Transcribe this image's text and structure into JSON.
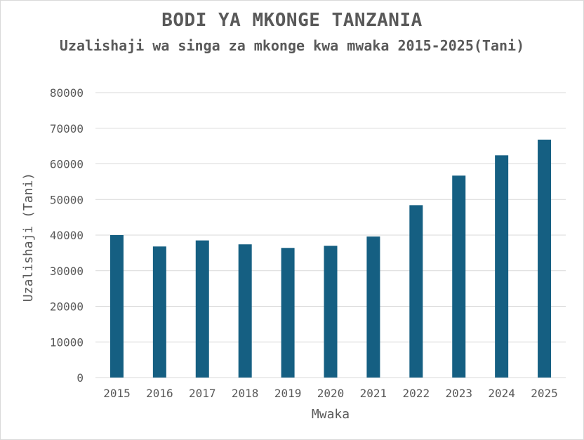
{
  "chart_data": {
    "type": "bar",
    "title": "BODI YA MKONGE TANZANIA",
    "subtitle": "Uzalishaji wa singa za mkonge kwa mwaka 2015-2025(Tani)",
    "xlabel": "Mwaka",
    "ylabel": "Uzalishaji (Tani)",
    "ylim": [
      0,
      80000
    ],
    "yticks": [
      0,
      10000,
      20000,
      30000,
      40000,
      50000,
      60000,
      70000,
      80000
    ],
    "grid": true,
    "legend": "none",
    "bar_color": "#155f82",
    "categories": [
      "2015",
      "2016",
      "2017",
      "2018",
      "2019",
      "2020",
      "2021",
      "2022",
      "2023",
      "2024",
      "2025"
    ],
    "values": [
      40000,
      36800,
      38500,
      37400,
      36400,
      37000,
      39600,
      48400,
      56700,
      62400,
      66800
    ]
  }
}
